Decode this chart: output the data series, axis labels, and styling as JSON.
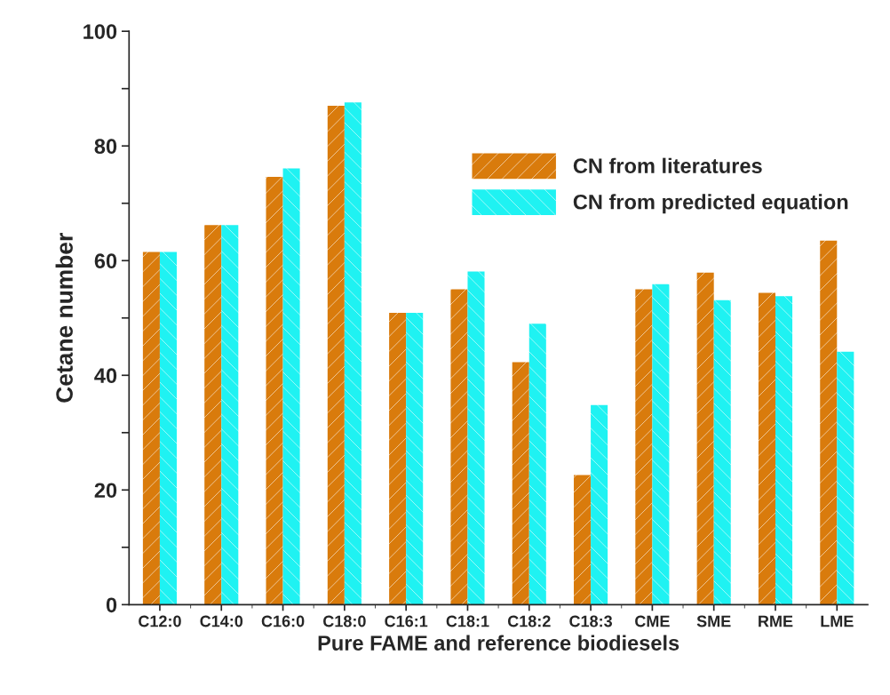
{
  "chart_data": {
    "type": "bar",
    "xlabel": "Pure FAME and reference biodiesels",
    "ylabel": "Cetane number",
    "categories": [
      "C12:0",
      "C14:0",
      "C16:0",
      "C18:0",
      "C16:1",
      "C18:1",
      "C18:2",
      "C18:3",
      "CME",
      "SME",
      "RME",
      "LME"
    ],
    "series": [
      {
        "name": "CN from literatures",
        "color": "#d97b0c",
        "values": [
          61.5,
          66.2,
          74.6,
          87.0,
          50.9,
          55.0,
          42.3,
          22.6,
          55.0,
          57.9,
          54.4,
          63.5
        ]
      },
      {
        "name": "CN from predicted equation",
        "color": "#1ff2f2",
        "values": [
          61.5,
          66.2,
          76.1,
          87.6,
          50.9,
          58.1,
          49.0,
          34.8,
          55.9,
          53.1,
          53.8,
          44.1
        ]
      }
    ],
    "ylim": [
      0,
      100
    ],
    "yticks": [
      0,
      {
        "value": 10,
        "label": null
      },
      20,
      {
        "value": 30,
        "label": null
      },
      40,
      {
        "value": 50,
        "label": null
      },
      60,
      {
        "value": 70,
        "label": null
      },
      80,
      {
        "value": 90,
        "label": null
      },
      100
    ],
    "legend": "top right",
    "grid": false
  }
}
